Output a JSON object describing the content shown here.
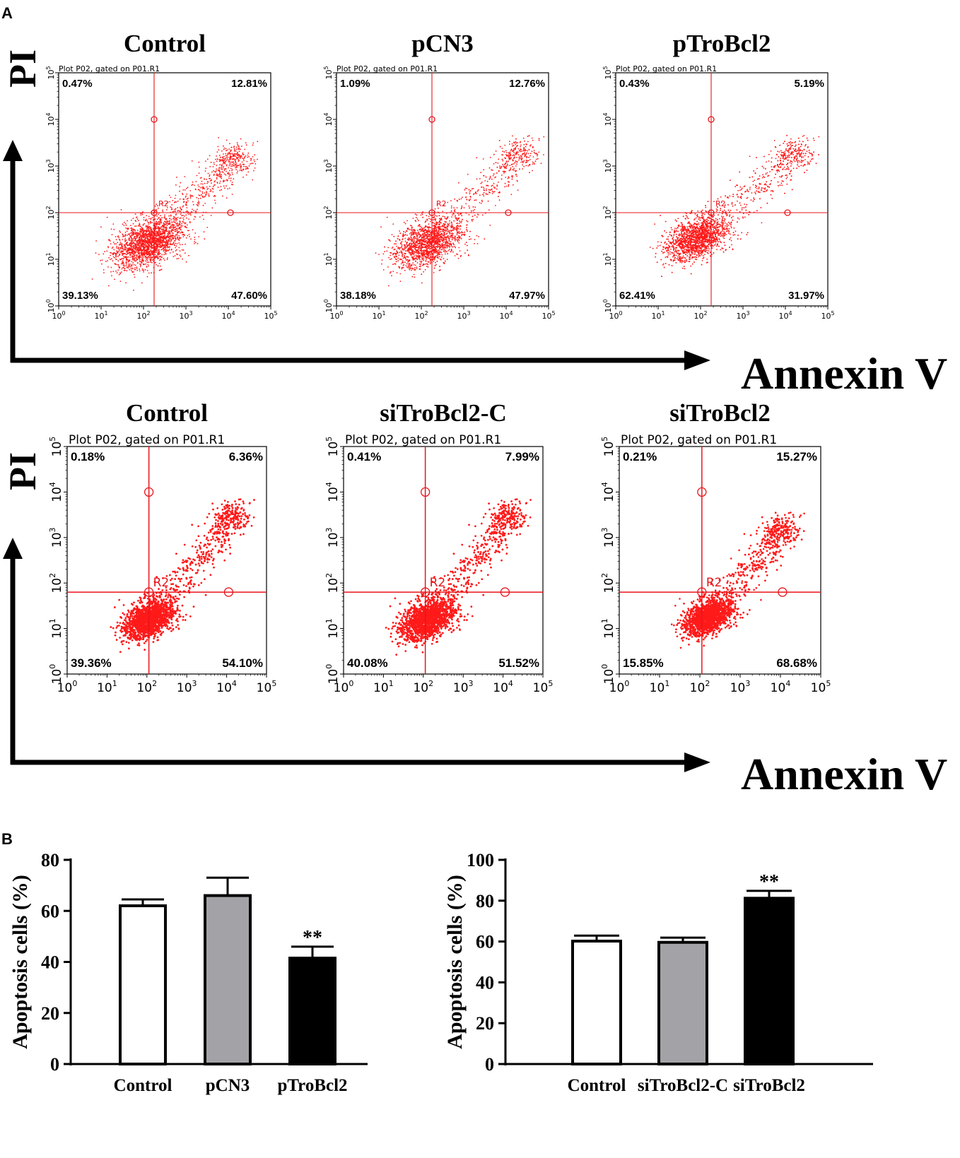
{
  "panel_a_label": "A",
  "panel_b_label": "B",
  "axis_titles": {
    "y": "PI",
    "x": "Annexin V"
  },
  "colors": {
    "dots": "#ff1a1a",
    "gate": "#e8141b",
    "ink": "#000000",
    "gray_bar": "#a3a3a7"
  },
  "chart_data": [
    {
      "type": "scatter",
      "title": "Control",
      "plot_label": "Plot P02, gated on P01.R1",
      "gate_label": "R2",
      "quadrants": {
        "ul": "0.47%",
        "ur": "12.81%",
        "ll": "39.13%",
        "lr": "47.60%"
      },
      "xlim": [
        0,
        5
      ],
      "ylim": [
        0,
        5
      ],
      "xscale": "log10",
      "yscale": "log10",
      "gate": {
        "x": 2.25,
        "y": 2.0
      },
      "cluster": {
        "x": 2.1,
        "y": 1.35,
        "spread": 0.45,
        "tail_to": [
          4.3,
          3.2
        ],
        "density": "medium"
      },
      "tick_labels": [
        "0",
        "1",
        "2",
        "3",
        "4",
        "5"
      ]
    },
    {
      "type": "scatter",
      "title": "pCN3",
      "plot_label": "Plot P02, gated on P01.R1",
      "gate_label": "R2",
      "quadrants": {
        "ul": "1.09%",
        "ur": "12.76%",
        "ll": "38.18%",
        "lr": "47.97%"
      },
      "xlim": [
        0,
        5
      ],
      "ylim": [
        0,
        5
      ],
      "xscale": "log10",
      "yscale": "log10",
      "gate": {
        "x": 2.25,
        "y": 2.0
      },
      "cluster": {
        "x": 2.15,
        "y": 1.35,
        "spread": 0.45,
        "tail_to": [
          4.5,
          3.3
        ],
        "density": "medium"
      },
      "tick_labels": [
        "0",
        "1",
        "2",
        "3",
        "4",
        "5"
      ]
    },
    {
      "type": "scatter",
      "title": "pTroBcl2",
      "plot_label": "Plot P02, gated on P01.R1",
      "gate_label": "R2",
      "quadrants": {
        "ul": "0.43%",
        "ur": "5.19%",
        "ll": "62.41%",
        "lr": "31.97%"
      },
      "xlim": [
        0,
        5
      ],
      "ylim": [
        0,
        5
      ],
      "xscale": "log10",
      "yscale": "log10",
      "gate": {
        "x": 2.25,
        "y": 2.0
      },
      "cluster": {
        "x": 1.9,
        "y": 1.45,
        "spread": 0.4,
        "tail_to": [
          4.4,
          3.3
        ],
        "density": "high"
      },
      "tick_labels": [
        "0",
        "1",
        "2",
        "3",
        "4",
        "5"
      ]
    },
    {
      "type": "scatter",
      "title": "Control",
      "plot_label": "Plot P02, gated on P01.R1",
      "gate_label": "R2",
      "quadrants": {
        "ul": "0.18%",
        "ur": "6.36%",
        "ll": "39.36%",
        "lr": "54.10%"
      },
      "xlim": [
        0,
        5
      ],
      "ylim": [
        0,
        5
      ],
      "xscale": "log10",
      "yscale": "log10",
      "gate": {
        "x": 2.05,
        "y": 1.8
      },
      "cluster": {
        "x": 2.05,
        "y": 1.2,
        "spread": 0.35,
        "tail_to": [
          4.3,
          3.5
        ],
        "density": "very-high"
      },
      "tick_labels": [
        "0",
        "1",
        "2",
        "3",
        "4",
        "5"
      ]
    },
    {
      "type": "scatter",
      "title": "siTroBcl2-C",
      "plot_label": "Plot P02, gated on P01.R1",
      "gate_label": "R2",
      "quadrants": {
        "ul": "0.41%",
        "ur": "7.99%",
        "ll": "40.08%",
        "lr": "51.52%"
      },
      "xlim": [
        0,
        5
      ],
      "ylim": [
        0,
        5
      ],
      "xscale": "log10",
      "yscale": "log10",
      "gate": {
        "x": 2.05,
        "y": 1.8
      },
      "cluster": {
        "x": 2.1,
        "y": 1.2,
        "spread": 0.38,
        "tail_to": [
          4.3,
          3.5
        ],
        "density": "very-high"
      },
      "tick_labels": [
        "0",
        "1",
        "2",
        "3",
        "4",
        "5"
      ]
    },
    {
      "type": "scatter",
      "title": "siTroBcl2",
      "plot_label": "Plot P02, gated on P01.R1",
      "gate_label": "R2",
      "quadrants": {
        "ul": "0.21%",
        "ur": "15.27%",
        "ll": "15.85%",
        "lr": "68.68%"
      },
      "xlim": [
        0,
        5
      ],
      "ylim": [
        0,
        5
      ],
      "xscale": "log10",
      "yscale": "log10",
      "gate": {
        "x": 2.05,
        "y": 1.8
      },
      "cluster": {
        "x": 2.2,
        "y": 1.25,
        "spread": 0.33,
        "tail_to": [
          4.2,
          3.2
        ],
        "density": "high"
      },
      "tick_labels": [
        "0",
        "1",
        "2",
        "3",
        "4",
        "5"
      ]
    },
    {
      "type": "bar",
      "ylabel": "Apoptosis cells (%)",
      "ylim": [
        0,
        80
      ],
      "yticks": [
        0,
        20,
        40,
        60,
        80
      ],
      "categories": [
        "Control",
        "pCN3",
        "pTroBcl2"
      ],
      "values": [
        62,
        66,
        41.5
      ],
      "errors": [
        2.5,
        7,
        4.5
      ],
      "fills": [
        "#ffffff",
        "#a3a3a7",
        "#000000"
      ],
      "annotations": [
        "",
        "",
        "**"
      ]
    },
    {
      "type": "bar",
      "ylabel": "Apoptosis cells (%)",
      "ylim": [
        0,
        100
      ],
      "yticks": [
        0,
        20,
        40,
        60,
        80,
        100
      ],
      "categories": [
        "Control",
        "siTroBcl2-C",
        "siTroBcl2"
      ],
      "values": [
        60.2,
        59.6,
        81.2
      ],
      "errors": [
        2.7,
        2.3,
        3.6
      ],
      "fills": [
        "#ffffff",
        "#a3a3a7",
        "#000000"
      ],
      "annotations": [
        "",
        "",
        "**"
      ]
    }
  ]
}
